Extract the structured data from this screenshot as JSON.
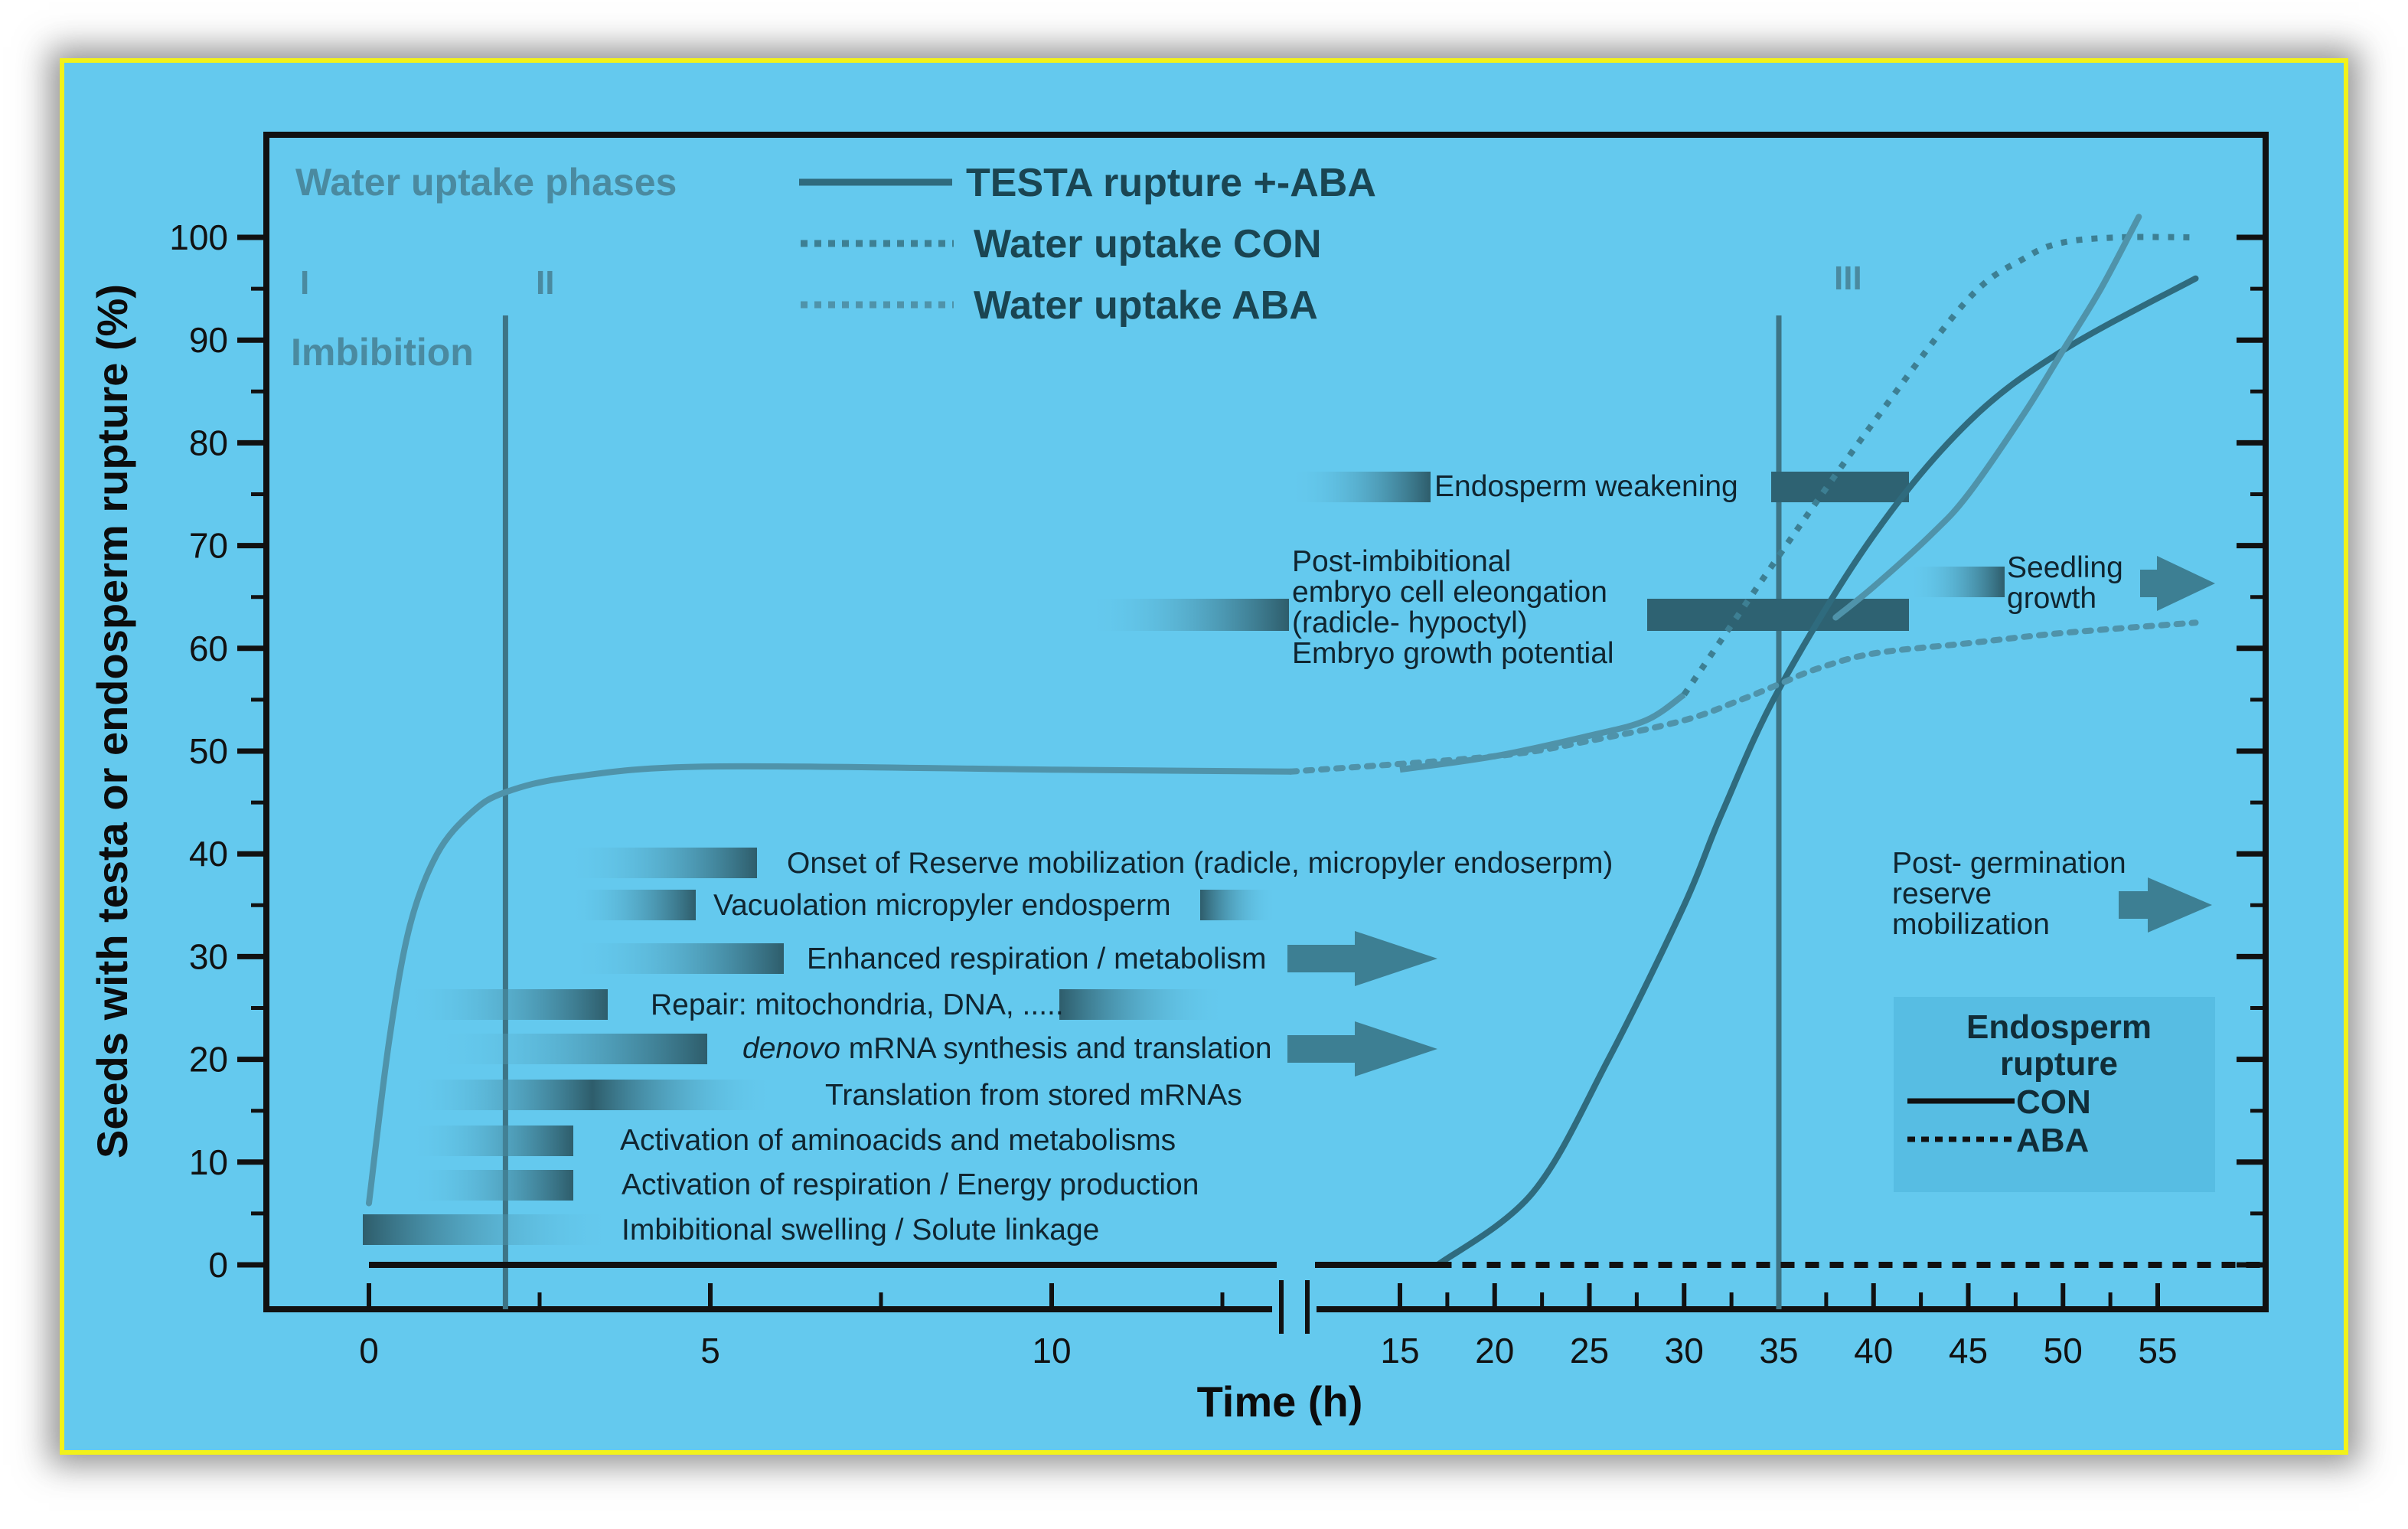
{
  "colors": {
    "panel_bg": "#64c9ee",
    "frame_border": "#f2f21a",
    "axis": "#111111",
    "testa_line": "#2f6b7e",
    "endosperm_line": "#2b6272",
    "water_line": "#4f93aa",
    "phase_text": "#4a8aa0"
  },
  "header": {
    "phases_title": "Water uptake phases",
    "phase_1": "I",
    "phase_2": "II",
    "phase_3": "III",
    "phase_1_name": "Imbibition"
  },
  "legend": {
    "items": [
      {
        "label": "TESTA rupture +-ABA",
        "style": "solid"
      },
      {
        "label": "Water uptake CON",
        "style": "dotted"
      },
      {
        "label": "Water uptake ABA",
        "style": "dotted"
      }
    ]
  },
  "inset_legend": {
    "title_line1": "Endosperm",
    "title_line2": "rupture",
    "con": "CON",
    "aba": "ABA"
  },
  "annotations": {
    "endosperm_weakening": "Endosperm weakening",
    "post_imb_1": "Post-imbibitional",
    "post_imb_2": "embryo cell eleongation",
    "post_imb_3": "(radicle- hypoctyl)",
    "post_imb_4": "Embryo growth potential",
    "seedling_1": "Seedling",
    "seedling_2": "growth",
    "post_germ_1": "Post- germination",
    "post_germ_2": "reserve",
    "post_germ_3": "mobilization",
    "onset_reserve": "Onset of Reserve mobilization (radicle, micropyler endoserpm)",
    "vacuolation": "Vacuolation micropyler endosperm",
    "respiration": "Enhanced respiration / metabolism",
    "repair": "Repair: mitochondria, DNA, .....",
    "denovo_italic": "denovo",
    "denovo_rest": " mRNA synthesis and translation",
    "translation": "Translation from stored mRNAs",
    "aminoacids": "Activation of aminoacids and metabolisms",
    "energy": "Activation of respiration / Energy production",
    "swelling": "Imbibitional swelling / Solute linkage"
  },
  "chart_data": {
    "type": "line",
    "xlabel": "Time (h)",
    "ylabel": "Seeds with testa or endosperm rupture (%)",
    "ylim": [
      0,
      100
    ],
    "y_ticks": [
      0,
      10,
      20,
      30,
      40,
      50,
      60,
      70,
      80,
      90,
      100
    ],
    "x_axis_broken": true,
    "x_segment_1": {
      "range": [
        0,
        13.5
      ],
      "ticks": [
        0,
        5,
        10
      ]
    },
    "x_segment_2": {
      "range": [
        13.5,
        57
      ],
      "ticks": [
        15,
        20,
        25,
        30,
        35,
        40,
        45,
        50,
        55
      ]
    },
    "phase_boundaries_h": [
      2,
      35
    ],
    "series": [
      {
        "name": "TESTA rupture +-ABA",
        "style": "solid",
        "x": [
          17,
          22,
          26,
          30,
          32,
          35,
          40,
          45,
          50,
          57
        ],
        "y": [
          0,
          7,
          20,
          35,
          44,
          56,
          71,
          82,
          89,
          96
        ]
      },
      {
        "name": "Water uptake CON",
        "style": "dotted",
        "x": [
          0,
          0.3,
          0.6,
          1.0,
          1.5,
          2.0,
          3.0,
          5.0,
          10,
          13.5,
          15,
          20,
          25,
          28,
          30,
          35,
          40,
          45,
          48,
          50,
          53,
          57
        ],
        "y": [
          6,
          22,
          33,
          40,
          44,
          46,
          47.5,
          48.5,
          48.2,
          48,
          48.2,
          49.5,
          51.5,
          53,
          55.5,
          69,
          82,
          94,
          98,
          99.5,
          100,
          100
        ]
      },
      {
        "name": "Water uptake ABA",
        "style": "dotted",
        "x": [
          13.5,
          20,
          25,
          30,
          33,
          35,
          37,
          40,
          45,
          50,
          57
        ],
        "y": [
          48,
          49.5,
          51,
          53,
          55,
          56.5,
          58,
          59.5,
          60.5,
          61.5,
          62.5
        ]
      },
      {
        "name": "CON",
        "style": "solid",
        "x": [
          38,
          40,
          43,
          45,
          48,
          50,
          52,
          54
        ],
        "y": [
          63,
          66,
          71,
          75,
          83,
          89,
          95,
          102
        ]
      },
      {
        "name": "ABA",
        "style": "dotted",
        "x": [
          13.5,
          57
        ],
        "y": [
          0,
          0
        ]
      }
    ],
    "x_tick_labels": [
      "0",
      "5",
      "10",
      "15",
      "20",
      "25",
      "30",
      "35",
      "40",
      "45",
      "50",
      "55"
    ],
    "y_tick_labels": [
      "0",
      "10",
      "20",
      "30",
      "40",
      "50",
      "60",
      "70",
      "80",
      "90",
      "100"
    ]
  }
}
